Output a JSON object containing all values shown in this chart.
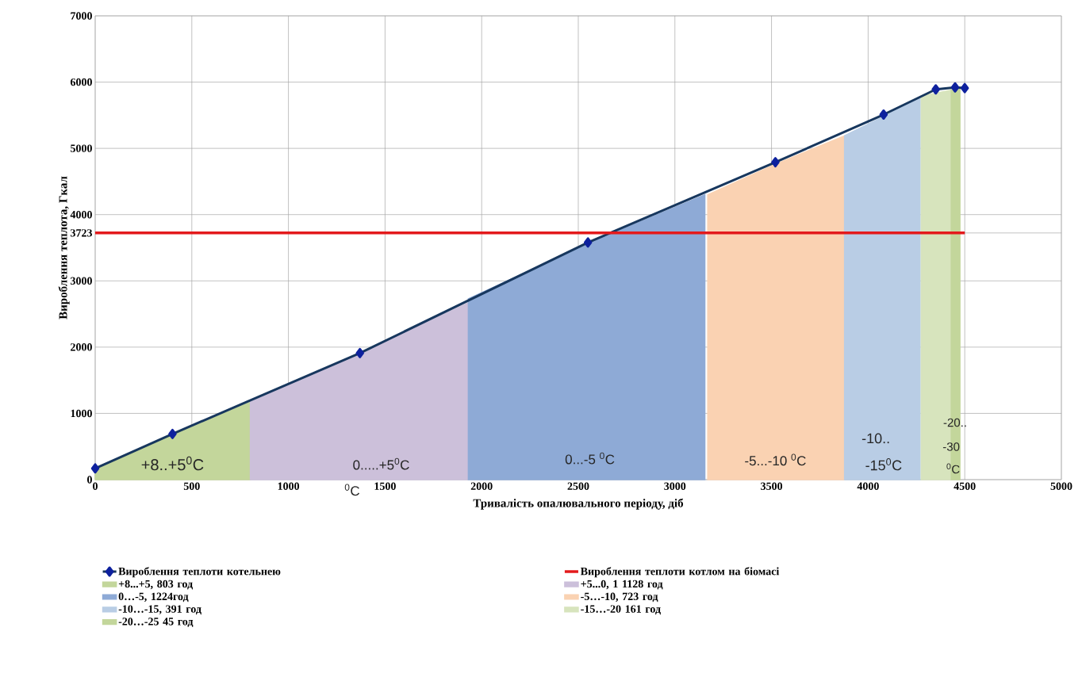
{
  "chart_data": {
    "type": "line",
    "xlabel": "Тривалість опалювального періоду, діб",
    "ylabel": "Вироблення теплота, Гкал",
    "xlim": [
      0,
      5000
    ],
    "xticks": [
      0,
      500,
      1000,
      1500,
      2000,
      2500,
      3000,
      3500,
      4000,
      4500,
      5000
    ],
    "ylim": [
      0,
      7000
    ],
    "yticks": [
      0,
      1000,
      2000,
      3000,
      3723,
      4000,
      5000,
      6000,
      7000
    ],
    "grid": true,
    "legend": "bottom",
    "series": [
      {
        "name": "Вироблення теплоти котельнею",
        "marker": "diamond",
        "color": "#17375e",
        "x": [
          0,
          400,
          1370,
          2550,
          3520,
          4080,
          4350,
          4450,
          4500
        ],
        "values": [
          170,
          690,
          1910,
          3580,
          4790,
          5510,
          5890,
          5920,
          5910
        ]
      },
      {
        "name": "Вироблення теплоти котлом на біомасі",
        "color": "#e31a1c",
        "x": [
          0,
          4500
        ],
        "values": [
          3723,
          3723
        ]
      },
      {
        "name": "+8...+5, 803 год",
        "type": "area",
        "color": "#c3d69b",
        "x": [
          0,
          803
        ],
        "values": [
          170,
          1170
        ]
      },
      {
        "name": "+5...0, 1 1128 год",
        "type": "area",
        "color": "#ccc0da",
        "x": [
          803,
          1370,
          1931
        ],
        "values": [
          1170,
          1900,
          2670
        ]
      },
      {
        "name": "0…-5, 1224год",
        "type": "area",
        "color": "#8eaad6",
        "x": [
          1931,
          2550,
          3155
        ],
        "values": [
          2730,
          3560,
          4300
        ]
      },
      {
        "name": "-5…-10, 723 год",
        "type": "area",
        "color": "#fad2b2",
        "x": [
          3170,
          3520,
          3878
        ],
        "values": [
          4300,
          4760,
          5190
        ]
      },
      {
        "name": "-10…-15, 391 год",
        "type": "area",
        "color": "#b9cde5",
        "x": [
          3878,
          4080,
          4269
        ],
        "values": [
          5190,
          5480,
          5780
        ]
      },
      {
        "name": "-15…-20 161 год",
        "type": "area",
        "color": "#d7e4bd",
        "x": [
          4275,
          4430
        ],
        "values": [
          5790,
          5880
        ]
      },
      {
        "name": "-20…-25 45 год",
        "type": "area",
        "color": "#c3d69b",
        "x": [
          4430,
          4475
        ],
        "values": [
          5880,
          5900
        ]
      }
    ],
    "annotations": [
      "+8..+5$^{0}$C",
      "0.....+5$^{0}$C",
      "$^{0}$C",
      "0...-5 $^{0}$C",
      "-5...-10 $^{0}$C",
      "-10..",
      "-15$^{0}$C",
      "-20..",
      "-30",
      "$^{0}$C"
    ]
  }
}
